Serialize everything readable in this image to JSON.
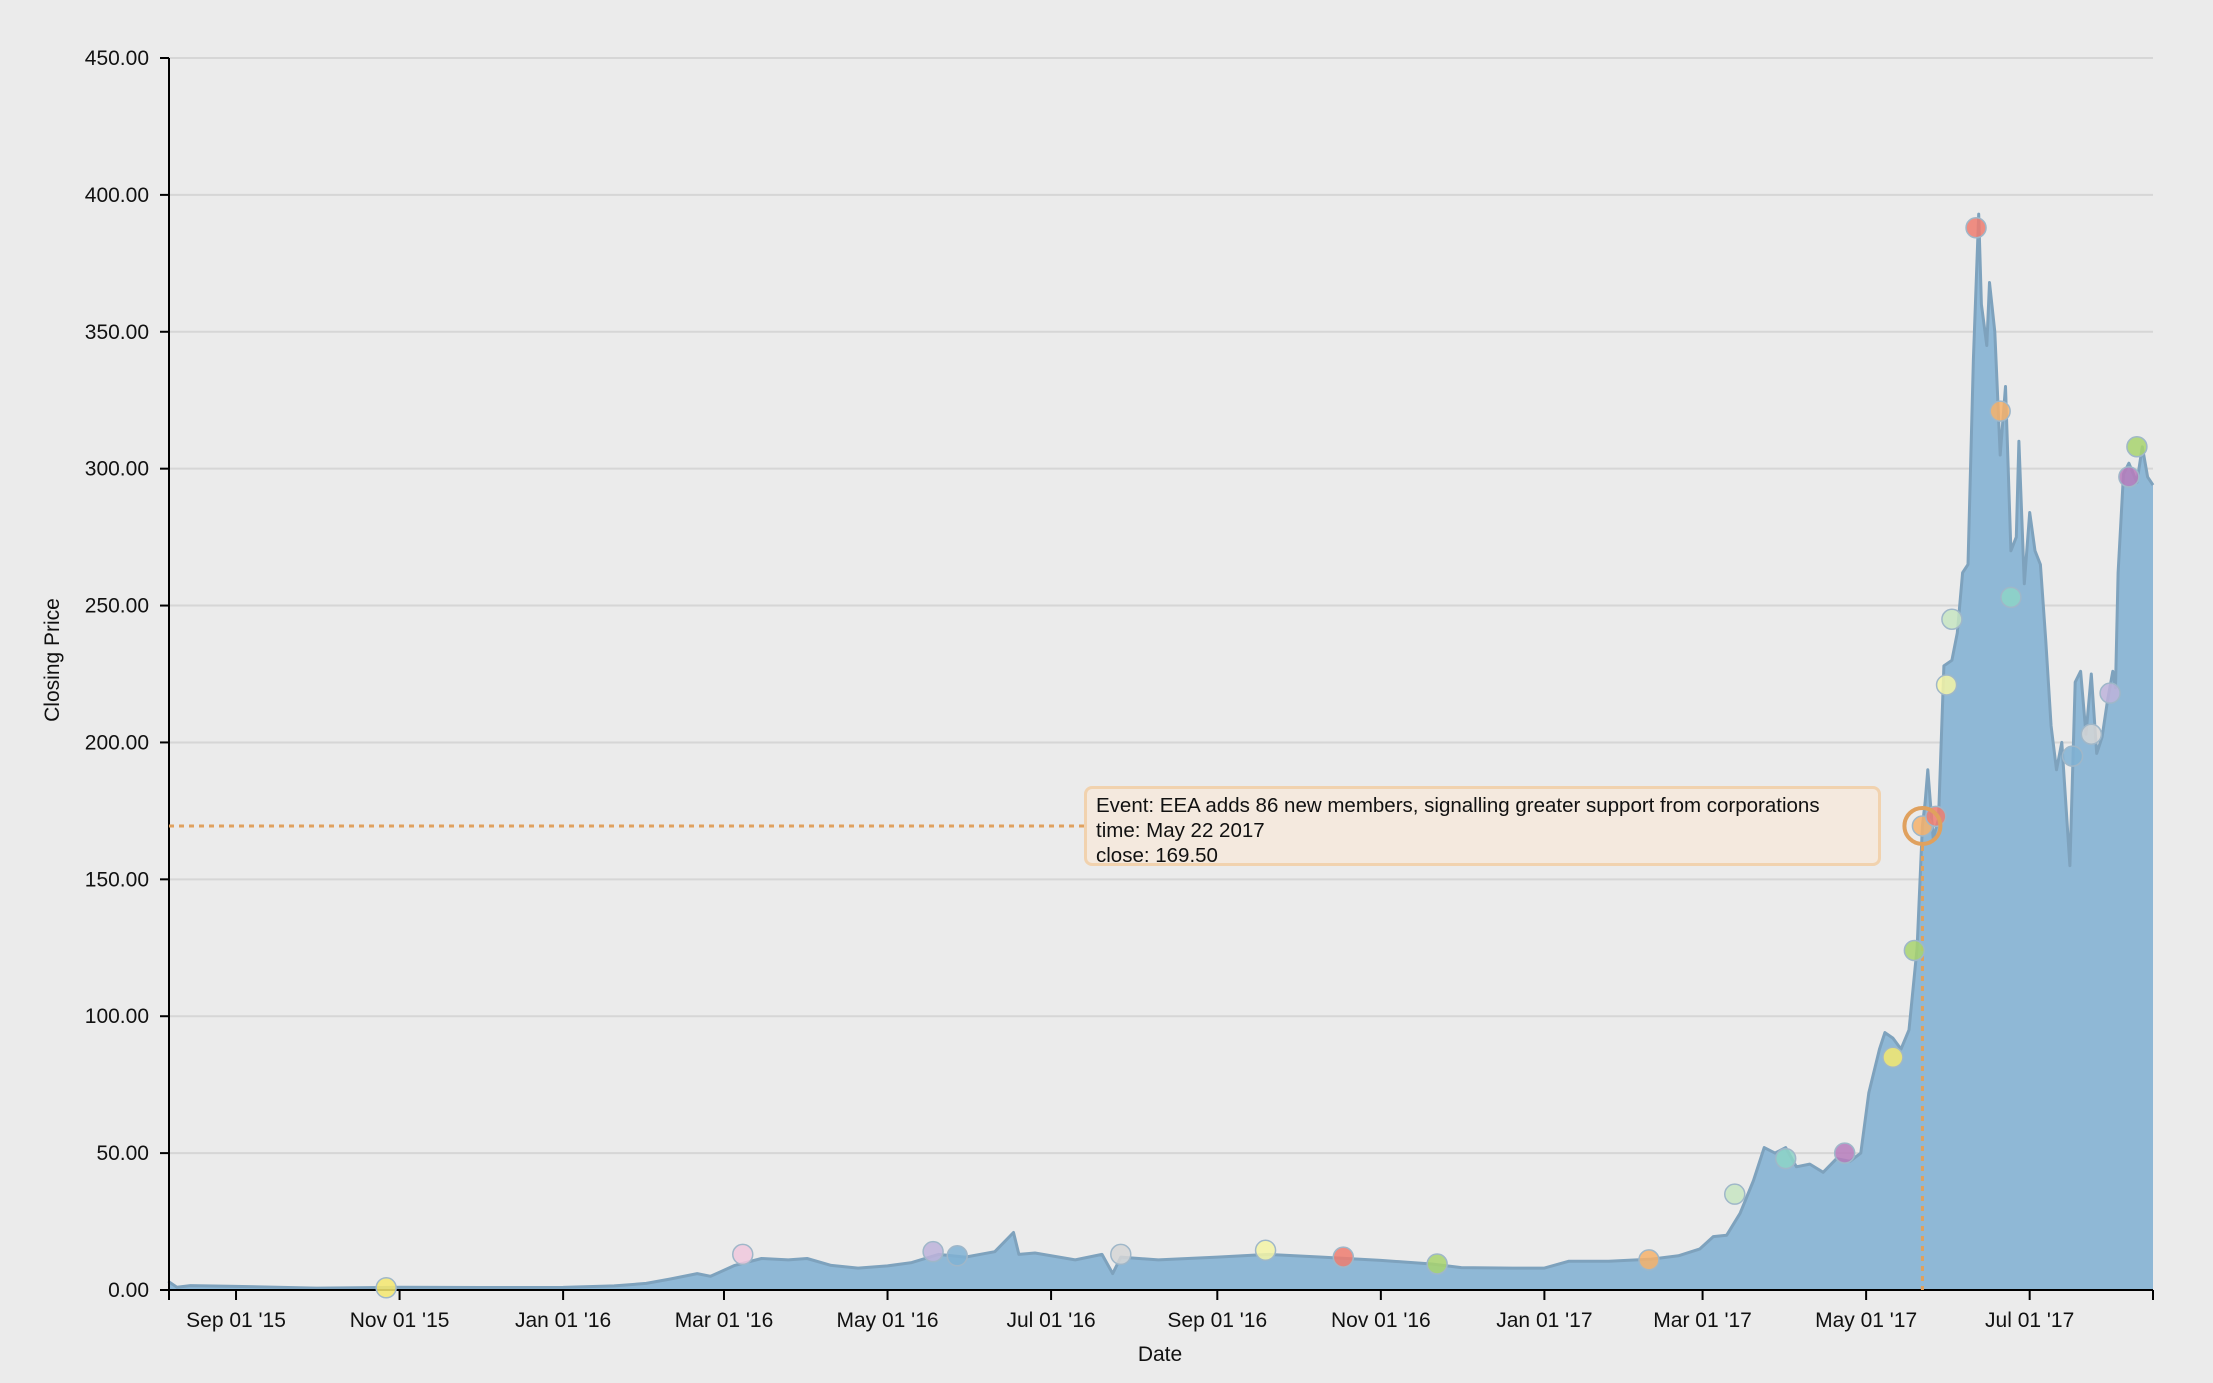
{
  "chart_data": {
    "type": "area",
    "xlabel": "Date",
    "ylabel": "Closing Price",
    "ylim": [
      0,
      450
    ],
    "xlim": [
      "2015-08-07",
      "2017-08-16"
    ],
    "grid": true,
    "y_ticks": [
      "0.00",
      "50.00",
      "100.00",
      "150.00",
      "200.00",
      "250.00",
      "300.00",
      "350.00",
      "400.00",
      "450.00"
    ],
    "x_ticks": [
      {
        "date": "2015-09-01",
        "label": "Sep 01 '15"
      },
      {
        "date": "2015-11-01",
        "label": "Nov 01 '15"
      },
      {
        "date": "2016-01-01",
        "label": "Jan 01 '16"
      },
      {
        "date": "2016-03-01",
        "label": "Mar 01 '16"
      },
      {
        "date": "2016-05-01",
        "label": "May 01 '16"
      },
      {
        "date": "2016-07-01",
        "label": "Jul 01 '16"
      },
      {
        "date": "2016-09-01",
        "label": "Sep 01 '16"
      },
      {
        "date": "2016-11-01",
        "label": "Nov 01 '16"
      },
      {
        "date": "2017-01-01",
        "label": "Jan 01 '17"
      },
      {
        "date": "2017-03-01",
        "label": "Mar 01 '17"
      },
      {
        "date": "2017-05-01",
        "label": "May 01 '17"
      },
      {
        "date": "2017-07-01",
        "label": "Jul 01 '17"
      }
    ],
    "series": [
      {
        "color": "#8fb8d6",
        "line_color": "#7ea2bd",
        "points": [
          [
            "2015-08-07",
            3.0
          ],
          [
            "2015-08-10",
            1.0
          ],
          [
            "2015-08-15",
            1.6
          ],
          [
            "2015-09-01",
            1.3
          ],
          [
            "2015-10-01",
            0.7
          ],
          [
            "2015-11-01",
            1.0
          ],
          [
            "2015-12-01",
            0.9
          ],
          [
            "2016-01-01",
            0.95
          ],
          [
            "2016-01-20",
            1.5
          ],
          [
            "2016-02-01",
            2.4
          ],
          [
            "2016-02-10",
            4.0
          ],
          [
            "2016-02-20",
            6.0
          ],
          [
            "2016-02-25",
            5.0
          ],
          [
            "2016-03-05",
            9.0
          ],
          [
            "2016-03-15",
            11.5
          ],
          [
            "2016-03-25",
            11.0
          ],
          [
            "2016-04-01",
            11.5
          ],
          [
            "2016-04-10",
            9.0
          ],
          [
            "2016-04-20",
            8.0
          ],
          [
            "2016-05-01",
            8.8
          ],
          [
            "2016-05-10",
            10.0
          ],
          [
            "2016-05-20",
            13.0
          ],
          [
            "2016-05-30",
            12.0
          ],
          [
            "2016-06-10",
            14.0
          ],
          [
            "2016-06-17",
            21.0
          ],
          [
            "2016-06-19",
            13.0
          ],
          [
            "2016-06-25",
            13.5
          ],
          [
            "2016-07-10",
            11.0
          ],
          [
            "2016-07-20",
            13.0
          ],
          [
            "2016-07-24",
            6.0
          ],
          [
            "2016-07-27",
            12.0
          ],
          [
            "2016-08-10",
            11.0
          ],
          [
            "2016-09-01",
            12.0
          ],
          [
            "2016-09-20",
            13.0
          ],
          [
            "2016-10-10",
            12.0
          ],
          [
            "2016-11-01",
            10.8
          ],
          [
            "2016-11-20",
            9.5
          ],
          [
            "2016-12-01",
            8.2
          ],
          [
            "2016-12-20",
            8.0
          ],
          [
            "2017-01-01",
            8.0
          ],
          [
            "2017-01-10",
            10.5
          ],
          [
            "2017-01-25",
            10.5
          ],
          [
            "2017-02-10",
            11.3
          ],
          [
            "2017-02-20",
            12.5
          ],
          [
            "2017-02-28",
            15.0
          ],
          [
            "2017-03-05",
            19.5
          ],
          [
            "2017-03-10",
            20.0
          ],
          [
            "2017-03-15",
            28.0
          ],
          [
            "2017-03-20",
            40.0
          ],
          [
            "2017-03-24",
            52.0
          ],
          [
            "2017-03-28",
            50.0
          ],
          [
            "2017-04-01",
            52.0
          ],
          [
            "2017-04-05",
            45.0
          ],
          [
            "2017-04-10",
            46.0
          ],
          [
            "2017-04-15",
            43.0
          ],
          [
            "2017-04-20",
            48.0
          ],
          [
            "2017-04-25",
            47.0
          ],
          [
            "2017-04-29",
            50.0
          ],
          [
            "2017-05-02",
            72.0
          ],
          [
            "2017-05-06",
            88.0
          ],
          [
            "2017-05-08",
            94.0
          ],
          [
            "2017-05-11",
            92.0
          ],
          [
            "2017-05-14",
            88.0
          ],
          [
            "2017-05-17",
            95.0
          ],
          [
            "2017-05-20",
            125.0
          ],
          [
            "2017-05-22",
            169.5
          ],
          [
            "2017-05-23",
            178.0
          ],
          [
            "2017-05-24",
            190.0
          ],
          [
            "2017-05-26",
            165.0
          ],
          [
            "2017-05-28",
            172.0
          ],
          [
            "2017-05-30",
            228.0
          ],
          [
            "2017-06-02",
            230.0
          ],
          [
            "2017-06-04",
            240.0
          ],
          [
            "2017-06-06",
            262.0
          ],
          [
            "2017-06-08",
            265.0
          ],
          [
            "2017-06-10",
            340.0
          ],
          [
            "2017-06-12",
            393.0
          ],
          [
            "2017-06-13",
            360.0
          ],
          [
            "2017-06-15",
            345.0
          ],
          [
            "2017-06-16",
            368.0
          ],
          [
            "2017-06-18",
            350.0
          ],
          [
            "2017-06-20",
            305.0
          ],
          [
            "2017-06-22",
            330.0
          ],
          [
            "2017-06-24",
            270.0
          ],
          [
            "2017-06-26",
            275.0
          ],
          [
            "2017-06-27",
            310.0
          ],
          [
            "2017-06-29",
            258.0
          ],
          [
            "2017-07-01",
            284.0
          ],
          [
            "2017-07-03",
            270.0
          ],
          [
            "2017-07-05",
            265.0
          ],
          [
            "2017-07-07",
            237.0
          ],
          [
            "2017-07-09",
            206.0
          ],
          [
            "2017-07-11",
            190.0
          ],
          [
            "2017-07-13",
            200.0
          ],
          [
            "2017-07-16",
            155.0
          ],
          [
            "2017-07-18",
            222.0
          ],
          [
            "2017-07-20",
            226.0
          ],
          [
            "2017-07-22",
            203.0
          ],
          [
            "2017-07-24",
            225.0
          ],
          [
            "2017-07-26",
            196.0
          ],
          [
            "2017-07-28",
            202.0
          ],
          [
            "2017-07-30",
            215.0
          ],
          [
            "2017-08-01",
            226.0
          ],
          [
            "2017-08-02",
            220.0
          ],
          [
            "2017-08-03",
            262.0
          ],
          [
            "2017-08-05",
            298.0
          ],
          [
            "2017-08-07",
            302.0
          ],
          [
            "2017-08-10",
            295.0
          ],
          [
            "2017-08-12",
            308.0
          ],
          [
            "2017-08-14",
            297.0
          ],
          [
            "2017-08-16",
            294.0
          ]
        ]
      }
    ],
    "events": [
      {
        "date": "2015-10-27",
        "close": 0.8,
        "color": "#f4e86f"
      },
      {
        "date": "2016-03-08",
        "close": 13.0,
        "color": "#f0c8dd"
      },
      {
        "date": "2016-05-18",
        "close": 14.0,
        "color": "#bdb3da"
      },
      {
        "date": "2016-05-27",
        "close": 12.5,
        "color": "#80b2d3"
      },
      {
        "date": "2016-07-27",
        "close": 13.0,
        "color": "#d6d6d6"
      },
      {
        "date": "2016-09-19",
        "close": 14.5,
        "color": "#f5f5a6"
      },
      {
        "date": "2016-10-18",
        "close": 12.0,
        "color": "#ef7d70"
      },
      {
        "date": "2016-11-22",
        "close": 9.5,
        "color": "#a8d46f"
      },
      {
        "date": "2017-02-09",
        "close": 11.0,
        "color": "#f6b26b"
      },
      {
        "date": "2017-03-13",
        "close": 35.0,
        "color": "#c7e5c2"
      },
      {
        "date": "2017-04-01",
        "close": 48.0,
        "color": "#8dd3c7"
      },
      {
        "date": "2017-04-23",
        "close": 50.0,
        "color": "#b67cbc"
      },
      {
        "date": "2017-05-11",
        "close": 85.0,
        "color": "#f4e86f"
      },
      {
        "date": "2017-05-19",
        "close": 124.0,
        "color": "#a8d46f"
      },
      {
        "date": "2017-05-22",
        "close": 169.5,
        "color": "#f6b26b"
      },
      {
        "date": "2017-05-27",
        "close": 173.0,
        "color": "#ef7d70"
      },
      {
        "date": "2017-05-31",
        "close": 221.0,
        "color": "#f5f5a6"
      },
      {
        "date": "2017-06-02",
        "close": 245.0,
        "color": "#c7e5c2"
      },
      {
        "date": "2017-06-11",
        "close": 388.0,
        "color": "#ef7d70"
      },
      {
        "date": "2017-06-20",
        "close": 321.0,
        "color": "#f6b26b"
      },
      {
        "date": "2017-06-24",
        "close": 253.0,
        "color": "#8dd3c7"
      },
      {
        "date": "2017-07-17",
        "close": 195.0,
        "color": "#80b2d3"
      },
      {
        "date": "2017-07-24",
        "close": 203.0,
        "color": "#d6d6d6"
      },
      {
        "date": "2017-07-31",
        "close": 218.0,
        "color": "#bdb3da"
      },
      {
        "date": "2017-08-07",
        "close": 297.0,
        "color": "#b67cbc"
      },
      {
        "date": "2017-08-10",
        "close": 308.0,
        "color": "#a8d46f"
      }
    ],
    "tooltip": {
      "date": "2017-05-22",
      "close": 169.5,
      "color": "#e0a15e",
      "event_line": "Event: EEA adds 86 new members, signalling greater support from corporations",
      "time_line": "time: May 22 2017",
      "close_line": "close: 169.50"
    }
  }
}
